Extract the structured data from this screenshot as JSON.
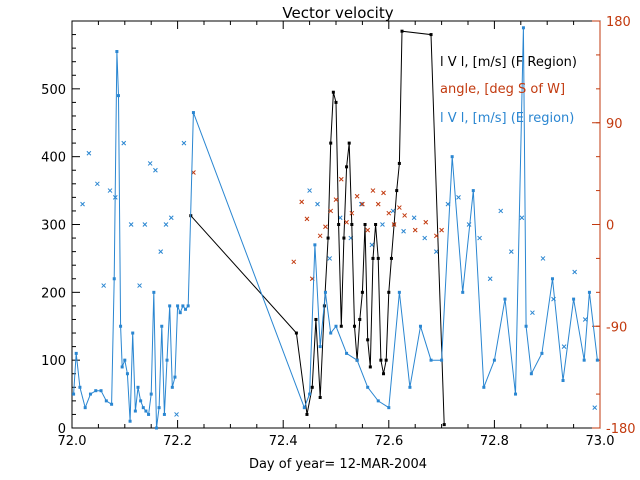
{
  "chart_data": {
    "type": "line",
    "title": "Vector velocity",
    "xlabel": "Day of year= 12-MAR-2004",
    "xlim": [
      72.0,
      73.0
    ],
    "ylim_left": [
      0,
      600
    ],
    "ylim_right": [
      -180,
      180
    ],
    "x_ticks": [
      "72.0",
      "72.2",
      "72.4",
      "72.6",
      "72.8",
      "73.0"
    ],
    "x_tick_values": [
      72.0,
      72.2,
      72.4,
      72.6,
      72.8,
      73.0
    ],
    "y_left_ticks": [
      "0",
      "100",
      "200",
      "300",
      "400",
      "500"
    ],
    "y_left_tick_values": [
      0,
      100,
      200,
      300,
      400,
      500
    ],
    "y_right_ticks": [
      "180",
      "90",
      "0",
      "-90",
      "-180"
    ],
    "y_right_tick_values": [
      180,
      90,
      0,
      -90,
      -180
    ],
    "legend": [
      {
        "label": "l V l, [m/s] (F Region)",
        "color": "#000000"
      },
      {
        "label": "angle, [deg S of W]",
        "color": "#c23a0f"
      },
      {
        "label": "l V l, [m/s] (E region)",
        "color": "#2a86d1"
      }
    ],
    "series": [
      {
        "name": "l V l, [m/s] (F Region)",
        "axis": "left",
        "color": "#000000",
        "style": "line",
        "x": [
          72.225,
          72.425,
          72.445,
          72.455,
          72.462,
          72.47,
          72.478,
          72.485,
          72.49,
          72.495,
          72.5,
          72.505,
          72.51,
          72.515,
          72.52,
          72.525,
          72.53,
          72.535,
          72.54,
          72.545,
          72.55,
          72.555,
          72.56,
          72.565,
          72.57,
          72.575,
          72.58,
          72.585,
          72.59,
          72.595,
          72.6,
          72.605,
          72.61,
          72.615,
          72.62,
          72.625,
          72.68,
          72.705
        ],
        "values": [
          313,
          140,
          20,
          60,
          160,
          45,
          180,
          280,
          420,
          495,
          480,
          300,
          150,
          280,
          385,
          420,
          300,
          150,
          100,
          160,
          200,
          300,
          130,
          90,
          250,
          300,
          250,
          100,
          80,
          100,
          200,
          250,
          300,
          350,
          390,
          585,
          580,
          5
        ]
      },
      {
        "name": "angle, [deg S of W]",
        "axis": "right",
        "color": "#c23a0f",
        "style": "markers",
        "x": [
          72.23,
          72.42,
          72.435,
          72.445,
          72.455,
          72.47,
          72.48,
          72.49,
          72.5,
          72.51,
          72.52,
          72.53,
          72.54,
          72.55,
          72.56,
          72.57,
          72.58,
          72.59,
          72.6,
          72.61,
          72.62,
          72.63,
          72.65,
          72.67,
          72.69,
          72.7
        ],
        "values": [
          46,
          -33,
          20,
          5,
          -48,
          -10,
          -2,
          12,
          22,
          40,
          2,
          10,
          25,
          18,
          -5,
          30,
          18,
          28,
          10,
          0,
          15,
          8,
          -5,
          2,
          -10,
          -5
        ]
      },
      {
        "name": "l V l, [m/s] (E region)",
        "axis": "left",
        "color": "#2a86d1",
        "style": "line",
        "x": [
          72.003,
          72.008,
          72.015,
          72.025,
          72.035,
          72.045,
          72.055,
          72.065,
          72.075,
          72.08,
          72.085,
          72.088,
          72.092,
          72.095,
          72.1,
          72.105,
          72.11,
          72.115,
          72.12,
          72.125,
          72.13,
          72.135,
          72.14,
          72.145,
          72.15,
          72.155,
          72.16,
          72.165,
          72.17,
          72.175,
          72.18,
          72.185,
          72.19,
          72.195,
          72.2,
          72.205,
          72.21,
          72.215,
          72.22,
          72.23,
          72.44,
          72.45,
          72.46,
          72.47,
          72.48,
          72.49,
          72.5,
          72.52,
          72.54,
          72.56,
          72.58,
          72.6,
          72.62,
          72.64,
          72.66,
          72.68,
          72.7,
          72.72,
          72.74,
          72.76,
          72.78,
          72.8,
          72.82,
          72.84,
          72.855,
          72.86,
          72.87,
          72.89,
          72.91,
          72.93,
          72.95,
          72.97,
          72.98,
          72.995
        ],
        "values": [
          50,
          110,
          60,
          30,
          50,
          55,
          55,
          40,
          35,
          220,
          555,
          490,
          150,
          90,
          100,
          80,
          10,
          140,
          25,
          60,
          40,
          30,
          25,
          20,
          50,
          200,
          0,
          30,
          150,
          20,
          100,
          180,
          60,
          75,
          180,
          170,
          180,
          175,
          180,
          465,
          30,
          50,
          270,
          120,
          200,
          140,
          150,
          110,
          100,
          60,
          40,
          30,
          200,
          60,
          150,
          100,
          100,
          400,
          200,
          350,
          60,
          100,
          190,
          50,
          590,
          150,
          80,
          110,
          220,
          70,
          190,
          100,
          200,
          100
        ]
      }
    ],
    "e_region_scatter": {
      "color": "#2a86d1",
      "axis": "left",
      "x": [
        72.02,
        72.032,
        72.048,
        72.06,
        72.072,
        72.082,
        72.098,
        72.112,
        72.128,
        72.138,
        72.148,
        72.158,
        72.168,
        72.178,
        72.188,
        72.198,
        72.212,
        72.45,
        72.465,
        72.488,
        72.508,
        72.528,
        72.548,
        72.568,
        72.588,
        72.608,
        72.628,
        72.648,
        72.668,
        72.69,
        72.712,
        72.732,
        72.752,
        72.772,
        72.792,
        72.812,
        72.832,
        72.852,
        72.872,
        72.892,
        72.912,
        72.932,
        72.952,
        72.972,
        72.99
      ],
      "values": [
        330,
        405,
        360,
        210,
        350,
        340,
        420,
        300,
        210,
        300,
        390,
        380,
        260,
        300,
        310,
        20,
        420,
        350,
        330,
        250,
        310,
        280,
        330,
        270,
        300,
        320,
        290,
        310,
        280,
        260,
        330,
        340,
        300,
        280,
        220,
        320,
        260,
        310,
        170,
        250,
        190,
        120,
        230,
        160,
        30
      ]
    }
  }
}
